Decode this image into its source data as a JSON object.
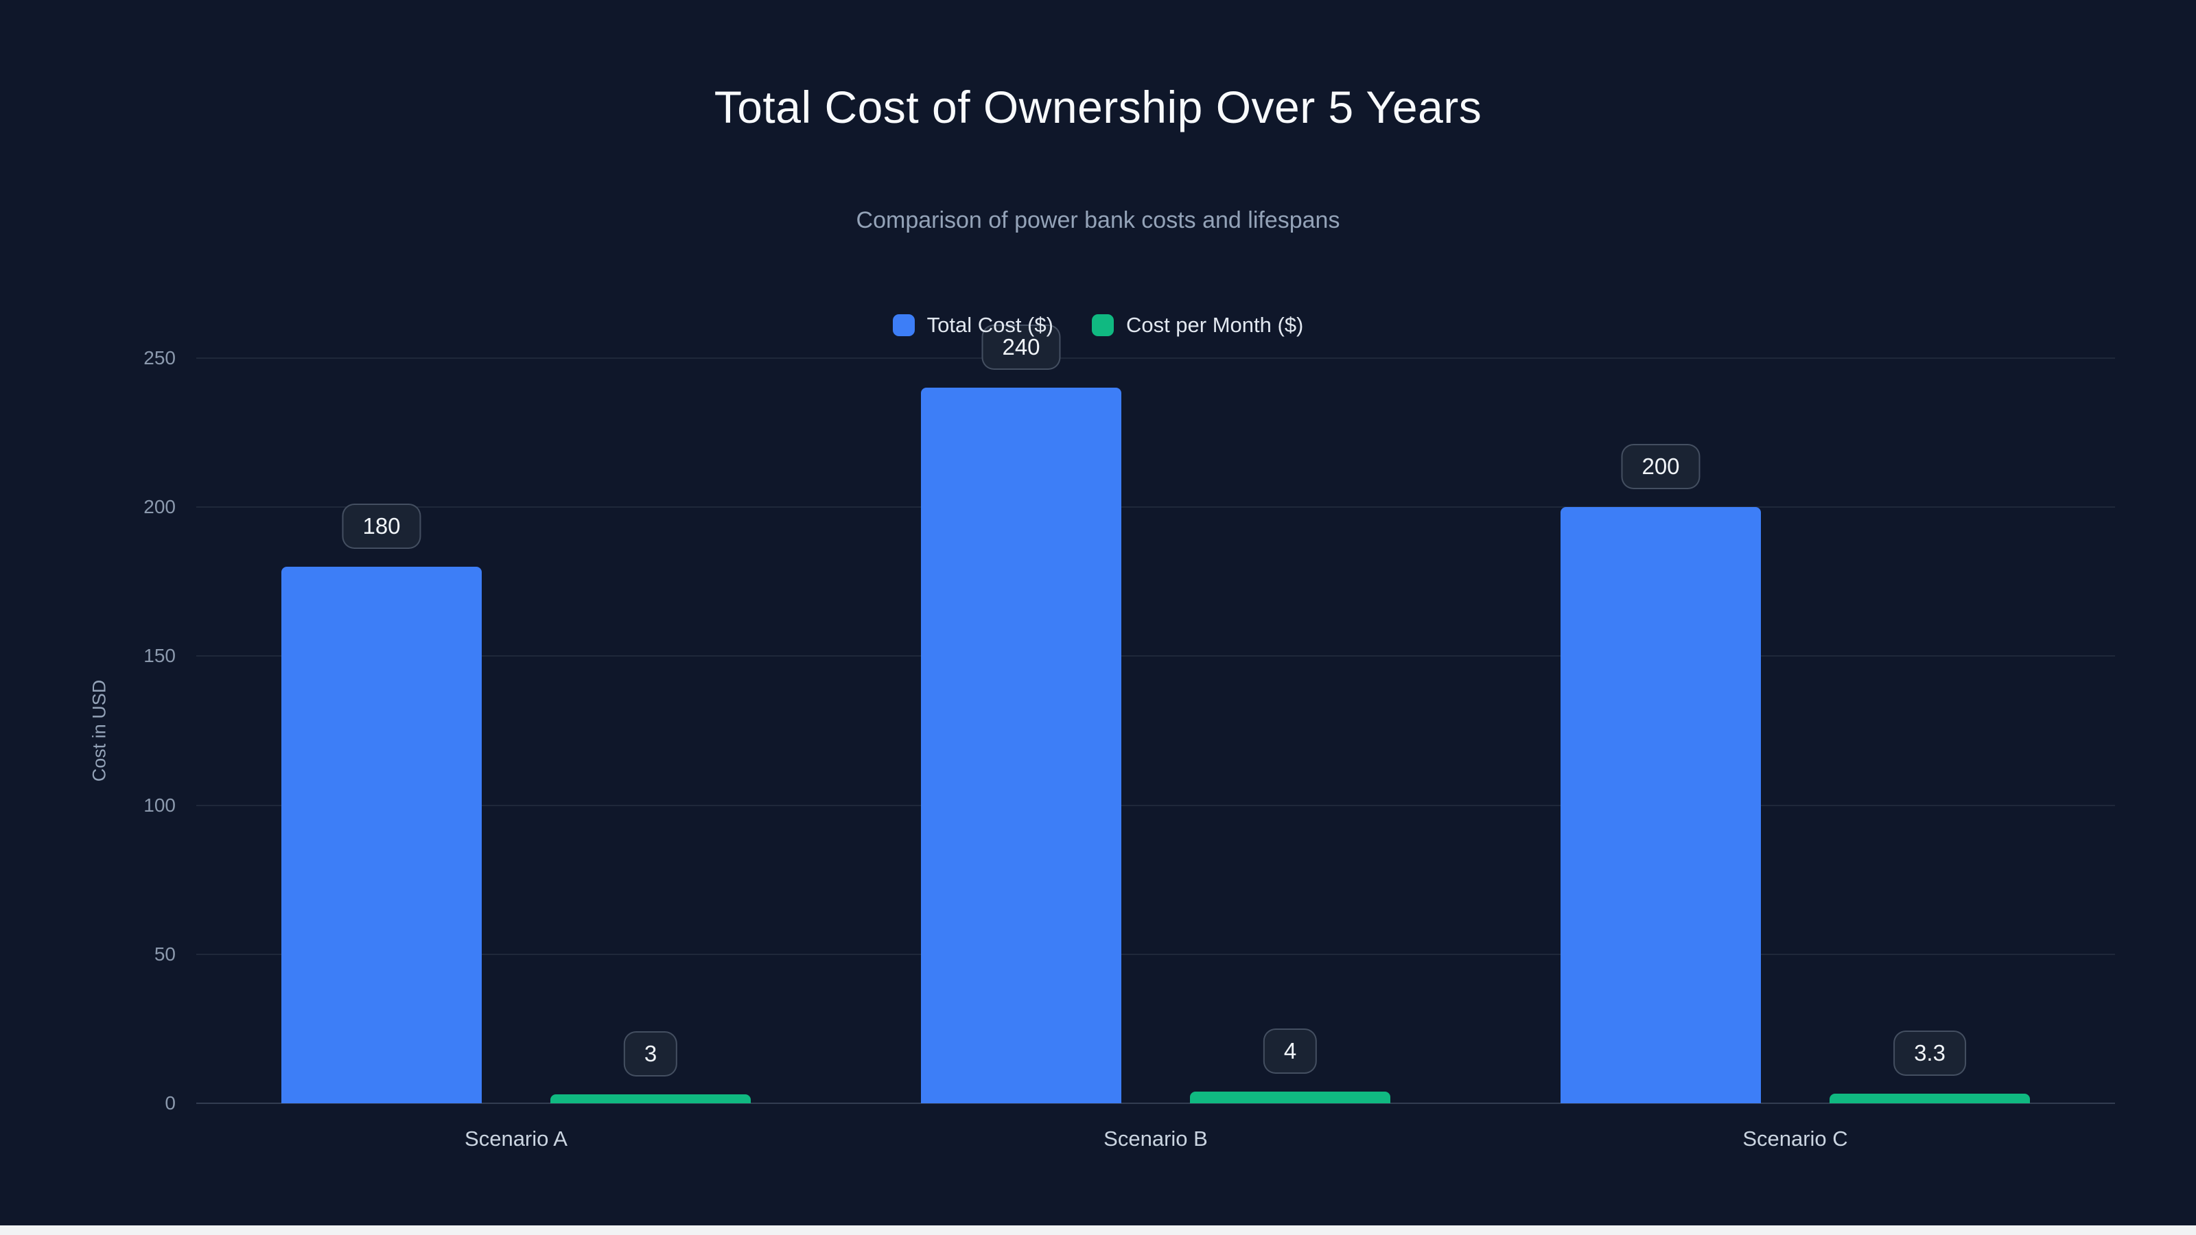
{
  "title": "Total Cost of Ownership Over 5 Years",
  "subtitle": "Comparison of power bank costs and lifespans",
  "legend": [
    {
      "label": "Total Cost ($)",
      "color": "#3d7ef7"
    },
    {
      "label": "Cost per Month ($)",
      "color": "#10b981"
    }
  ],
  "colors": {
    "background": "#0f172a",
    "total_cost_bar": "#3d7ef7",
    "cost_per_month_bar": "#10b981",
    "title_text": "#f8fafc",
    "muted_text": "#94a3b8"
  },
  "chart_data": {
    "type": "bar",
    "title": "Total Cost of Ownership Over 5 Years",
    "subtitle": "Comparison of power bank costs and lifespans",
    "categories": [
      "Scenario A",
      "Scenario B",
      "Scenario C"
    ],
    "series": [
      {
        "name": "Total Cost ($)",
        "color": "#3d7ef7",
        "values": [
          180,
          240,
          200
        ],
        "labels": [
          "180",
          "240",
          "200"
        ]
      },
      {
        "name": "Cost per Month ($)",
        "color": "#10b981",
        "values": [
          3,
          4,
          3.3
        ],
        "labels": [
          "3",
          "4",
          "3.3"
        ]
      }
    ],
    "xlabel": "",
    "ylabel": "Cost in USD",
    "yticks": [
      0,
      50,
      100,
      150,
      200,
      250
    ],
    "ylim": [
      0,
      250
    ],
    "grid": true,
    "legend_position": "top"
  }
}
